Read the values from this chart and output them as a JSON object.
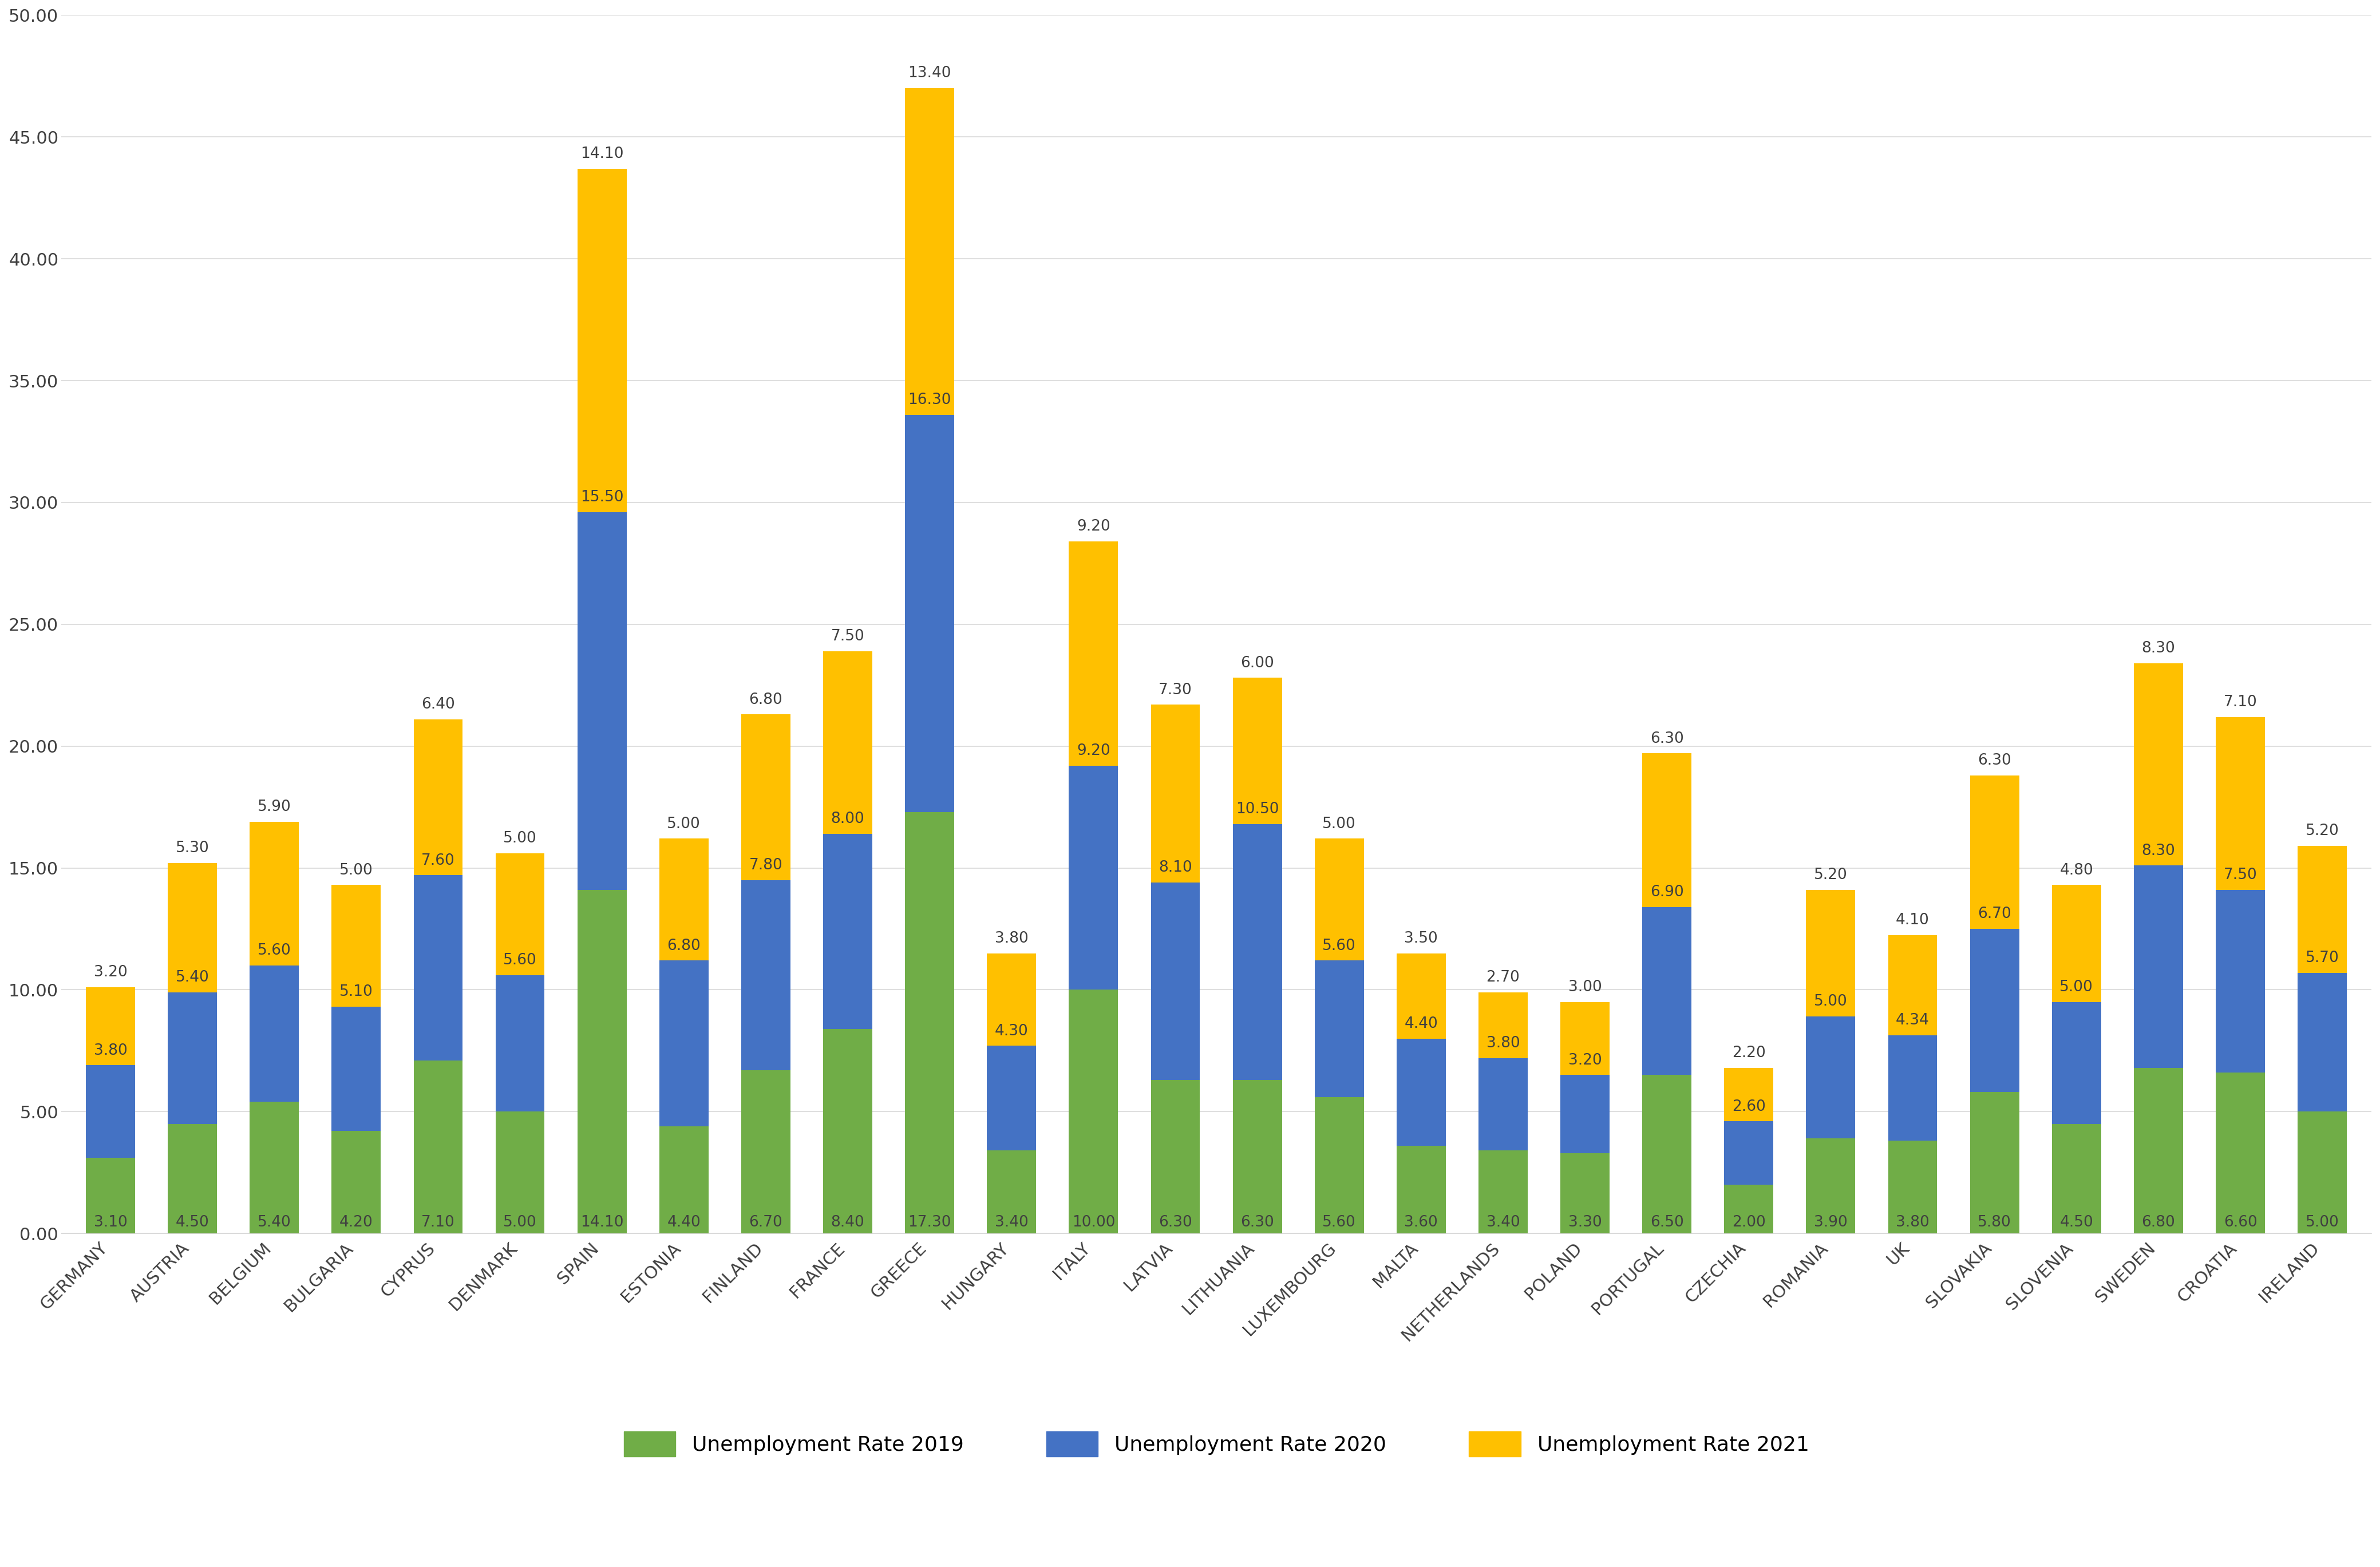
{
  "categories": [
    "GERMANY",
    "AUSTRIA",
    "BELGIUM",
    "BULGARIA",
    "CYPRUS",
    "DENMARK",
    "SPAIN",
    "ESTONIA",
    "FINLAND",
    "FRANCE",
    "GREECE",
    "HUNGARY",
    "ITALY",
    "LATVIA",
    "LITHUANIA",
    "LUXEMBOURG",
    "MALTA",
    "NETHERLANDS",
    "POLAND",
    "PORTUGAL",
    "CZECHIA",
    "ROMANIA",
    "UK",
    "SLOVAKIA",
    "SLOVENIA",
    "SWEDEN",
    "CROATIA",
    "IRELAND"
  ],
  "unemployment_2019": [
    3.1,
    4.5,
    5.4,
    4.2,
    7.1,
    5.0,
    14.1,
    4.4,
    6.7,
    8.4,
    17.3,
    3.4,
    10.0,
    6.3,
    6.3,
    5.6,
    3.6,
    3.4,
    3.3,
    6.5,
    2.0,
    3.9,
    3.8,
    5.8,
    4.5,
    6.8,
    6.6,
    5.0
  ],
  "unemployment_2020": [
    3.8,
    5.4,
    5.6,
    5.1,
    7.6,
    5.6,
    15.5,
    6.8,
    7.8,
    8.0,
    16.3,
    4.3,
    9.2,
    8.1,
    10.5,
    5.6,
    4.4,
    3.8,
    3.2,
    6.9,
    2.6,
    5.0,
    4.34,
    6.7,
    5.0,
    8.3,
    7.5,
    5.7
  ],
  "unemployment_2021": [
    3.2,
    5.3,
    5.9,
    5.0,
    6.4,
    5.0,
    14.1,
    5.0,
    6.8,
    7.5,
    13.4,
    3.8,
    9.2,
    7.3,
    6.0,
    5.0,
    3.5,
    2.7,
    3.0,
    6.3,
    2.2,
    5.2,
    4.1,
    6.3,
    4.8,
    8.3,
    7.1,
    5.2
  ],
  "color_2019": "#70AD47",
  "color_2020": "#4472C4",
  "color_2021": "#FFC000",
  "legend_labels": [
    "Unemployment Rate 2019",
    "Unemployment Rate 2020",
    "Unemployment Rate 2021"
  ],
  "ylim": [
    0,
    50
  ],
  "yticks": [
    0.0,
    5.0,
    10.0,
    15.0,
    20.0,
    25.0,
    30.0,
    35.0,
    40.0,
    45.0,
    50.0
  ],
  "ytick_labels": [
    "0.00",
    "5.00",
    "10.00",
    "15.00",
    "20.00",
    "25.00",
    "30.00",
    "35.00",
    "40.00",
    "45.00",
    "50.00"
  ],
  "background_color": "#FFFFFF",
  "grid_color": "#D9D9D9",
  "bar_width": 0.6,
  "tick_fontsize": 22,
  "legend_fontsize": 26,
  "value_fontsize": 19,
  "label_color": "#404040"
}
